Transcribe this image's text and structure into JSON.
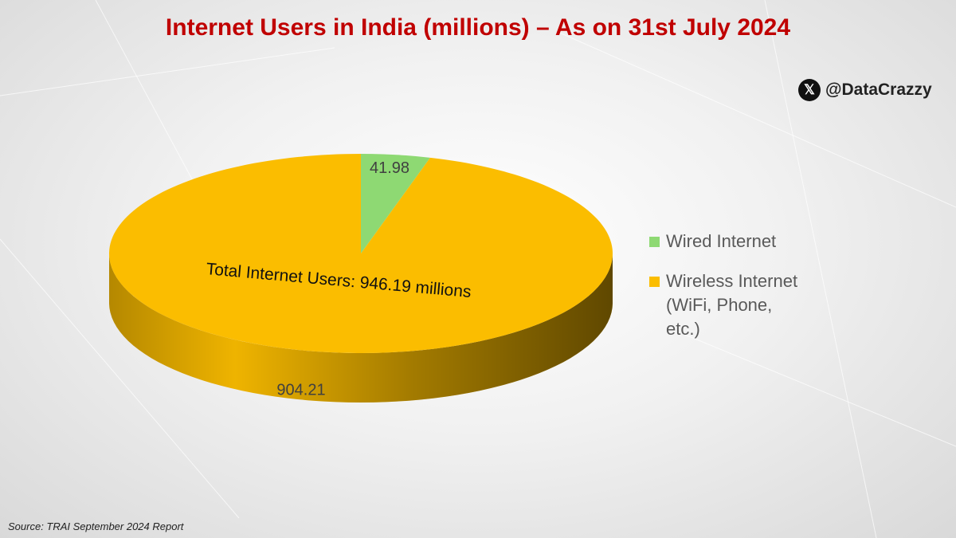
{
  "chart_data": {
    "type": "pie",
    "title": "Internet Users in India (millions) – As on 31st July 2024",
    "categories": [
      "Wired Internet",
      "Wireless Internet (WiFi, Phone, etc.)"
    ],
    "values": [
      41.98,
      904.21
    ],
    "colors": [
      "#8ed973",
      "#fbbd00"
    ],
    "annotation": "Total Internet Users: 946.19 millions",
    "handle": "@DataCrazzy",
    "source": "Source: TRAI September 2024 Report",
    "legend": "right"
  }
}
